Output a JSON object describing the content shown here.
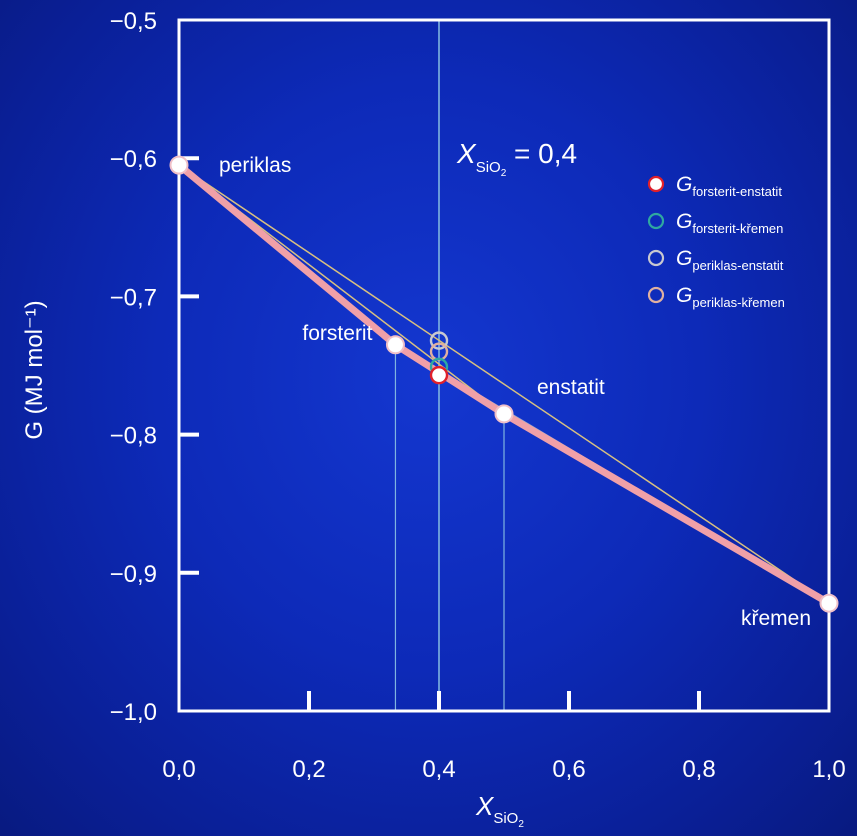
{
  "chart_data": {
    "type": "line",
    "xlabel": "X",
    "xlabel_sub": "SiO",
    "xlabel_sub2": "2",
    "ylabel": "G (MJ mol⁻¹)",
    "xlim": [
      0,
      1
    ],
    "ylim": [
      -1.0,
      -0.5
    ],
    "x_ticks": [
      0.0,
      0.2,
      0.4,
      0.6,
      0.8,
      1.0
    ],
    "x_tick_labels": [
      "0,0",
      "0,2",
      "0,4",
      "0,6",
      "0,8",
      "1,0"
    ],
    "y_ticks": [
      -0.5,
      -0.6,
      -0.7,
      -0.8,
      -0.9,
      -1.0
    ],
    "y_tick_labels": [
      "−0,5",
      "−0,6",
      "−0,7",
      "−0,8",
      "−0,9",
      "−1,0"
    ],
    "annotation": {
      "var": "X",
      "sub": "SiO",
      "sub2": "2",
      "text": " = 0,4",
      "x": 0.4
    },
    "phases": [
      {
        "name": "periklas",
        "x": 0.0,
        "y": -0.605
      },
      {
        "name": "forsterit",
        "x": 0.333,
        "y": -0.735
      },
      {
        "name": "enstatit",
        "x": 0.5,
        "y": -0.785
      },
      {
        "name": "křemen",
        "x": 1.0,
        "y": -0.922
      }
    ],
    "series": [
      {
        "name_main": "G",
        "name_sub": "forsterit-enstatit",
        "x": 0.4,
        "y": -0.757,
        "color": "#e0202a",
        "fill": "#ffffff"
      },
      {
        "name_main": "G",
        "name_sub": "forsterit-křemen",
        "x": 0.4,
        "y": -0.751,
        "color": "#2fa8a0",
        "fill": "none"
      },
      {
        "name_main": "G",
        "name_sub": "periklas-enstatit",
        "x": 0.4,
        "y": -0.732,
        "color": "#c8c8d0",
        "fill": "none"
      },
      {
        "name_main": "G",
        "name_sub": "periklas-křemen",
        "x": 0.4,
        "y": -0.74,
        "color": "#e0b0a0",
        "fill": "none"
      }
    ],
    "colors": {
      "hull": "#f0a0a8",
      "tie_line": "#d8c080",
      "guide": "#7fb4e0",
      "frame": "#ffffff"
    },
    "grid": false,
    "legend_placement": "top-right"
  }
}
